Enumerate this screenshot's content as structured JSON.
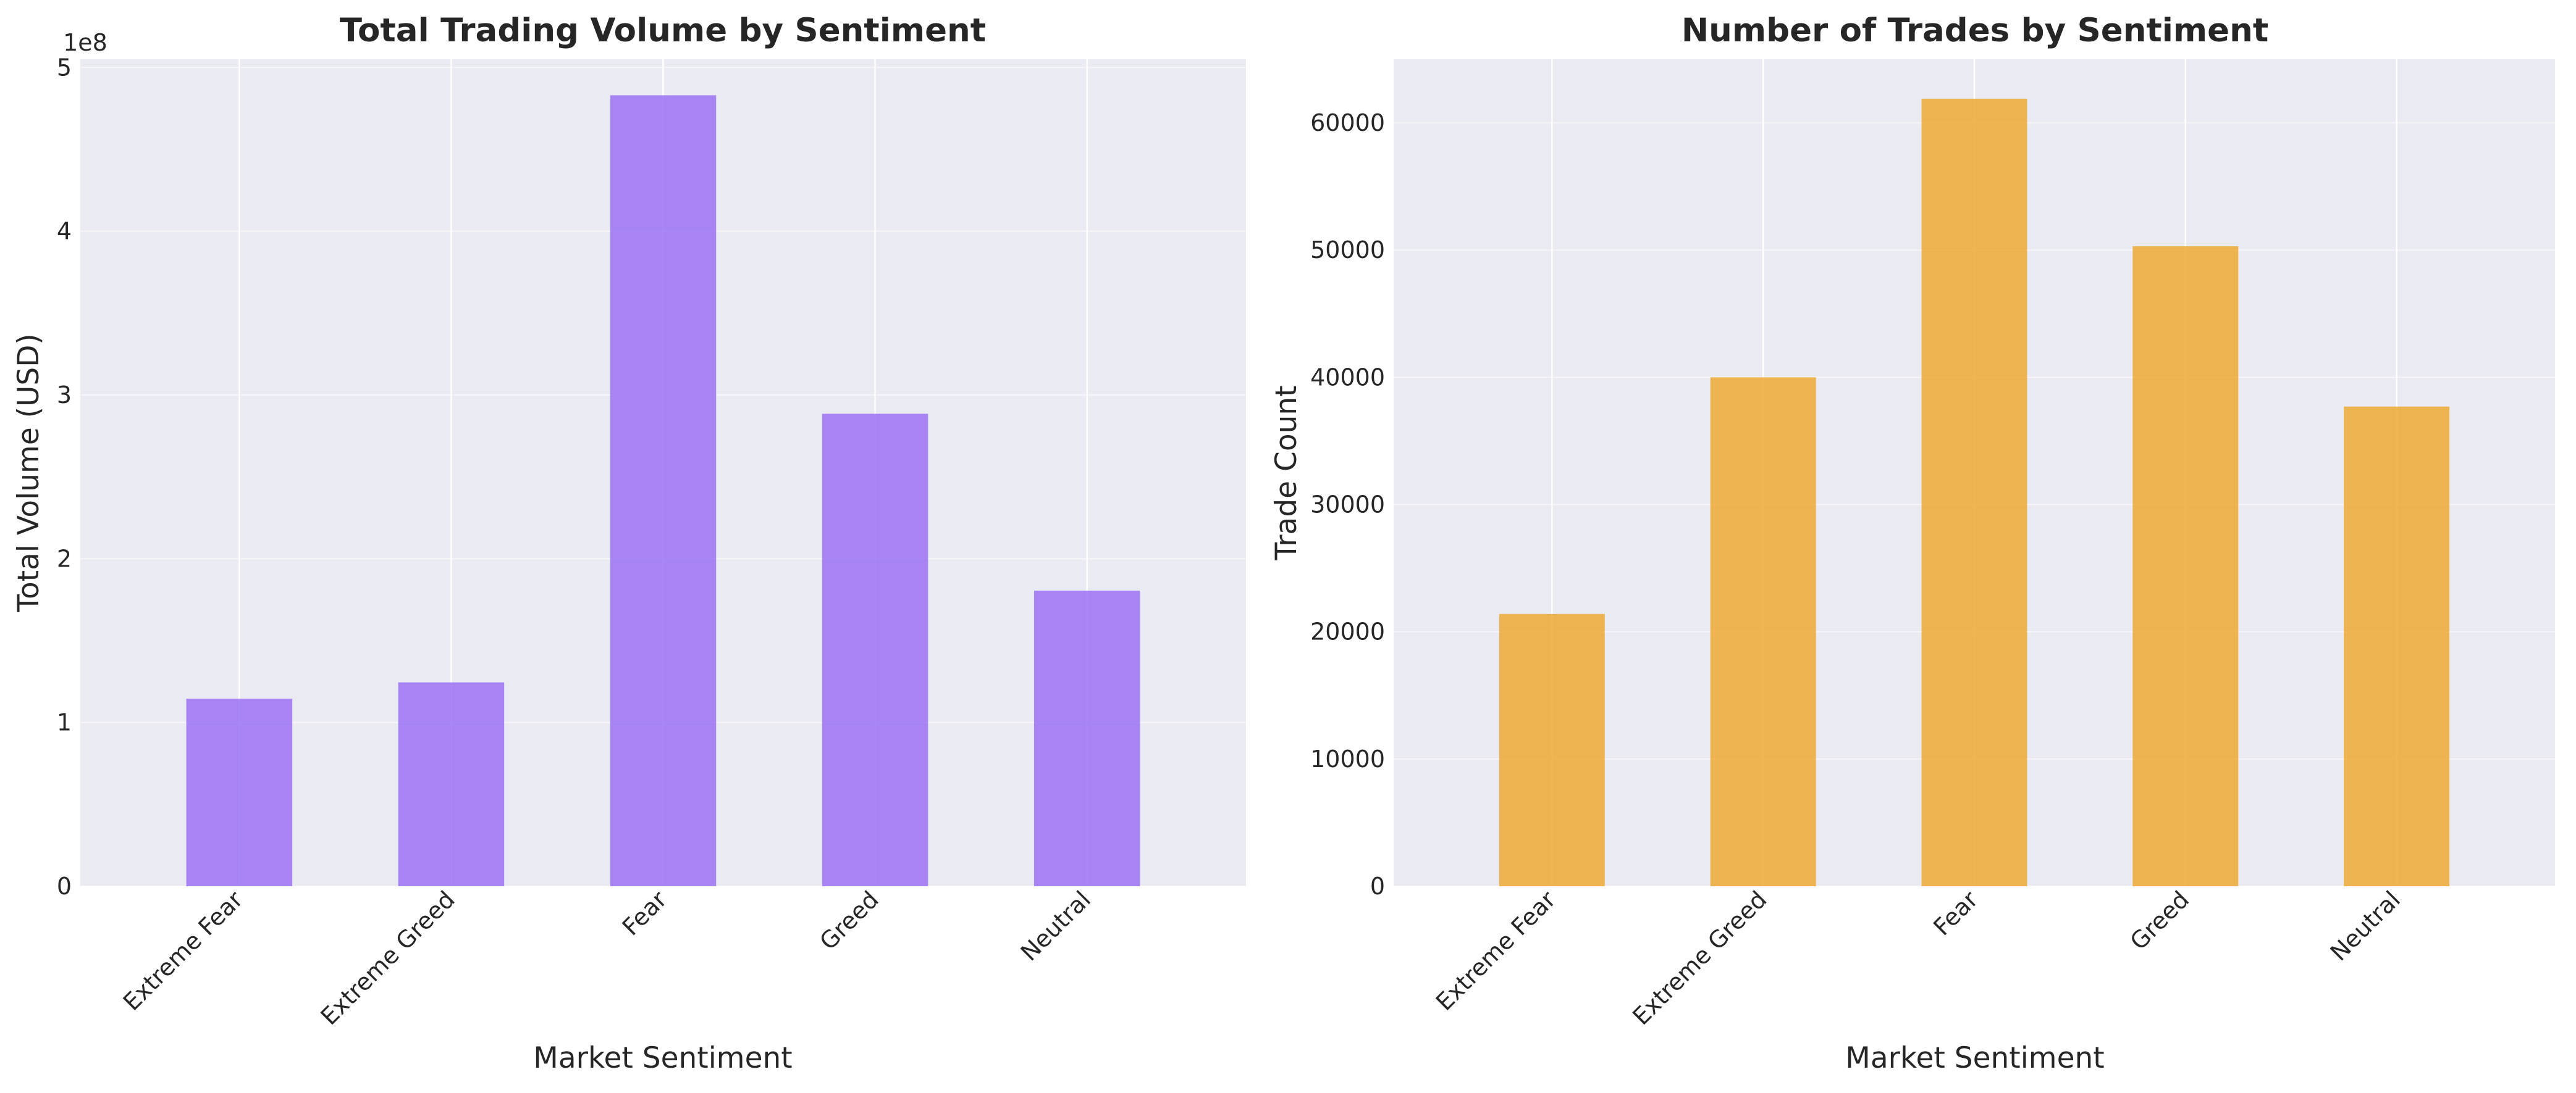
{
  "chart_data": [
    {
      "type": "bar",
      "title": "Total Trading Volume by Sentiment",
      "xlabel": "Market Sentiment",
      "ylabel": "Total Volume (USD)",
      "categories": [
        "Extreme Fear",
        "Extreme Greed",
        "Fear",
        "Greed",
        "Neutral"
      ],
      "values": [
        114500000,
        124500000,
        483000000,
        288500000,
        180500000
      ],
      "ylim": [
        0,
        505000000
      ],
      "yticks": [
        0,
        1,
        2,
        3,
        4,
        5
      ],
      "ytick_labels": [
        "0",
        "1",
        "2",
        "3",
        "4",
        "5"
      ],
      "y_scale_label": "1e8",
      "color": "#9b72f2",
      "grid": true,
      "background": "#eaeaf2"
    },
    {
      "type": "bar",
      "title": "Number of Trades by Sentiment",
      "xlabel": "Market Sentiment",
      "ylabel": "Trade Count",
      "categories": [
        "Extreme Fear",
        "Extreme Greed",
        "Fear",
        "Greed",
        "Neutral"
      ],
      "values": [
        21400,
        40000,
        61900,
        50300,
        37700
      ],
      "ylim": [
        0,
        65000
      ],
      "yticks": [
        0,
        10000,
        20000,
        30000,
        40000,
        50000,
        60000
      ],
      "ytick_labels": [
        "0",
        "10000",
        "20000",
        "30000",
        "40000",
        "50000",
        "60000"
      ],
      "y_scale_label": "",
      "color": "#eea935",
      "grid": true,
      "background": "#eaeaf2"
    }
  ]
}
